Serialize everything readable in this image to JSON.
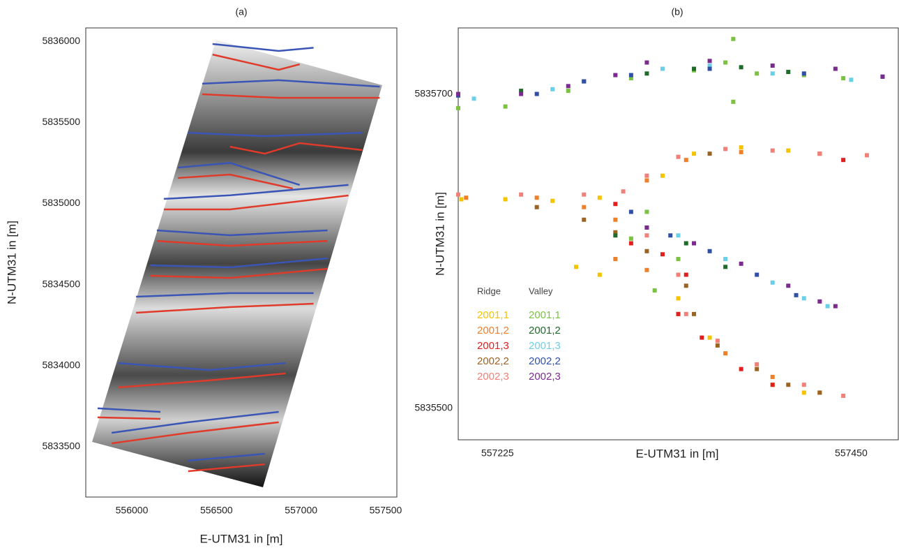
{
  "chart_data": [
    {
      "type": "line",
      "title": "(a)",
      "x_label": "E-UTM31 in [m]",
      "y_label": "N-UTM31 in [m]",
      "xlim": [
        555728,
        557566
      ],
      "ylim": [
        5833190,
        5836082
      ],
      "xticks": [
        556000,
        556500,
        557000,
        557500
      ],
      "yticks": [
        5833500,
        5834000,
        5834500,
        5835000,
        5835500,
        5836000
      ],
      "lines": [
        {
          "color": "#3a55b5",
          "x": [
            556477,
            556868,
            557074
          ],
          "y": [
            5835983,
            5835940,
            5835960
          ]
        },
        {
          "color": "#3a55b5",
          "x": [
            556416,
            556868,
            557465
          ],
          "y": [
            5835738,
            5835760,
            5835720
          ]
        },
        {
          "color": "#3a55b5",
          "x": [
            556333,
            556786,
            557362
          ],
          "y": [
            5835436,
            5835415,
            5835436
          ]
        },
        {
          "color": "#3a55b5",
          "x": [
            556272,
            556580,
            556992
          ],
          "y": [
            5835221,
            5835250,
            5835114
          ]
        },
        {
          "color": "#3a55b5",
          "x": [
            556189,
            556580,
            557280
          ],
          "y": [
            5835028,
            5835050,
            5835114
          ]
        },
        {
          "color": "#3a55b5",
          "x": [
            556148,
            556580,
            557156
          ],
          "y": [
            5834834,
            5834804,
            5834834
          ]
        },
        {
          "color": "#3a55b5",
          "x": [
            556107,
            556580,
            557156
          ],
          "y": [
            5834619,
            5834606,
            5834662
          ]
        },
        {
          "color": "#3a55b5",
          "x": [
            556025,
            556580,
            557074
          ],
          "y": [
            5834425,
            5834447,
            5834447
          ]
        },
        {
          "color": "#3a55b5",
          "x": [
            555922,
            556457,
            556909
          ],
          "y": [
            5834016,
            5833973,
            5834016
          ]
        },
        {
          "color": "#3a55b5",
          "x": [
            555798,
            556169
          ],
          "y": [
            5833737,
            5833715
          ]
        },
        {
          "color": "#3a55b5",
          "x": [
            555881,
            556333,
            556868
          ],
          "y": [
            5833586,
            5833651,
            5833715
          ]
        },
        {
          "color": "#3a55b5",
          "x": [
            556333,
            556786
          ],
          "y": [
            5833414,
            5833457
          ]
        },
        {
          "color": "#e03a2a",
          "x": [
            556477,
            556868,
            556992
          ],
          "y": [
            5835918,
            5835824,
            5835858
          ]
        },
        {
          "color": "#e03a2a",
          "x": [
            556416,
            556868,
            557465
          ],
          "y": [
            5835673,
            5835651,
            5835651
          ]
        },
        {
          "color": "#e03a2a",
          "x": [
            556580,
            556786,
            556992,
            557362
          ],
          "y": [
            5835350,
            5835307,
            5835372,
            5835329
          ]
        },
        {
          "color": "#e03a2a",
          "x": [
            556272,
            556580,
            556951
          ],
          "y": [
            5835157,
            5835178,
            5835092
          ]
        },
        {
          "color": "#e03a2a",
          "x": [
            556189,
            556580,
            557280
          ],
          "y": [
            5834963,
            5834963,
            5835049
          ]
        },
        {
          "color": "#e03a2a",
          "x": [
            556148,
            556580,
            557156
          ],
          "y": [
            5834769,
            5834739,
            5834769
          ]
        },
        {
          "color": "#e03a2a",
          "x": [
            556107,
            556580,
            557156
          ],
          "y": [
            5834554,
            5834541,
            5834597
          ]
        },
        {
          "color": "#e03a2a",
          "x": [
            556025,
            556580,
            557074
          ],
          "y": [
            5834326,
            5834361,
            5834382
          ]
        },
        {
          "color": "#e03a2a",
          "x": [
            555922,
            556457,
            556909
          ],
          "y": [
            5833866,
            5833909,
            5833952
          ]
        },
        {
          "color": "#e03a2a",
          "x": [
            555798,
            556169
          ],
          "y": [
            5833681,
            5833672
          ]
        },
        {
          "color": "#e03a2a",
          "x": [
            555881,
            556333,
            556868
          ],
          "y": [
            5833521,
            5833586,
            5833651
          ]
        },
        {
          "color": "#e03a2a",
          "x": [
            556333,
            556786
          ],
          "y": [
            5833349,
            5833392
          ]
        }
      ]
    },
    {
      "type": "scatter",
      "title": "(b)",
      "x_label": "E-UTM31 in [m]",
      "y_label": "N-UTM31 in [m]",
      "xlim": [
        557200,
        557480
      ],
      "ylim": [
        5835480,
        5835742
      ],
      "xticks": [
        557225,
        557450
      ],
      "yticks": [
        5835500,
        5835700
      ],
      "groups": [
        {
          "title": "Ridge",
          "series": [
            {
              "name": "2001,1",
              "color": "#f5c400",
              "x": [
                557202,
                557230,
                557260,
                557290,
                557330,
                557350,
                557380,
                557410,
                557275,
                557290,
                557340,
                557360,
                557400,
                557420
              ],
              "y": [
                5835633,
                5835633,
                5835632,
                5835634,
                5835648,
                5835662,
                5835666,
                5835664,
                5835590,
                5835585,
                5835570,
                5835545,
                5835515,
                5835510
              ]
            },
            {
              "name": "2001,2",
              "color": "#f07f2a",
              "x": [
                557205,
                557250,
                557280,
                557300,
                557320,
                557345,
                557380,
                557300,
                557320,
                557340,
                557370,
                557400,
                557430
              ],
              "y": [
                5835634,
                5835634,
                5835628,
                5835620,
                5835645,
                5835658,
                5835663,
                5835595,
                5835588,
                5835560,
                5835535,
                5835520,
                5835510
              ]
            },
            {
              "name": "2001,3",
              "color": "#e01f1f",
              "x": [
                557300,
                557310,
                557330,
                557345,
                557340,
                557355,
                557380,
                557400,
                557430,
                557445
              ],
              "y": [
                5835630,
                5835605,
                5835598,
                5835585,
                5835560,
                5835545,
                5835525,
                5835515,
                5835662,
                5835658
              ]
            },
            {
              "name": "2002,2",
              "color": "#9a6322",
              "x": [
                557250,
                557280,
                557300,
                557320,
                557345,
                557350,
                557365,
                557390,
                557410,
                557430,
                557360
              ],
              "y": [
                5835628,
                5835620,
                5835612,
                5835600,
                5835578,
                5835560,
                5835540,
                5835525,
                5835515,
                5835510,
                5835662
              ]
            },
            {
              "name": "2002,3",
              "color": "#f08078",
              "x": [
                557200,
                557240,
                557280,
                557305,
                557320,
                557340,
                557370,
                557400,
                557430,
                557460,
                557320,
                557340,
                557345,
                557365,
                557390,
                557420,
                557445
              ],
              "y": [
                5835636,
                5835636,
                5835636,
                5835638,
                5835648,
                5835660,
                5835665,
                5835664,
                5835662,
                5835661,
                5835610,
                5835585,
                5835560,
                5835543,
                5835528,
                5835515,
                5835508
              ]
            }
          ]
        },
        {
          "title": "Valley",
          "series": [
            {
              "name": "2001,1",
              "color": "#7cc242",
              "x": [
                557200,
                557230,
                557270,
                557310,
                557350,
                557370,
                557375,
                557375,
                557390,
                557420,
                557445,
                557320,
                557310,
                557325,
                557340
              ],
              "y": [
                5835691,
                5835692,
                5835702,
                5835710,
                5835715,
                5835720,
                5835735,
                5835695,
                5835713,
                5835712,
                5835710,
                5835625,
                5835608,
                5835575,
                5835595
              ]
            },
            {
              "name": "2001,2",
              "color": "#1f6b2a",
              "x": [
                557240,
                557280,
                557320,
                557350,
                557380,
                557410,
                557300,
                557320,
                557345,
                557370
              ],
              "y": [
                5835702,
                5835708,
                5835713,
                5835716,
                5835717,
                5835714,
                5835610,
                5835615,
                5835605,
                5835590
              ]
            },
            {
              "name": "2001,3",
              "color": "#6ccfe8",
              "x": [
                557210,
                557260,
                557330,
                557360,
                557400,
                557450,
                557340,
                557370,
                557400,
                557420,
                557435
              ],
              "y": [
                5835697,
                5835703,
                5835716,
                5835718,
                5835713,
                5835709,
                5835610,
                5835595,
                5835580,
                5835570,
                5835565
              ]
            },
            {
              "name": "2002,2",
              "color": "#3050a8",
              "x": [
                557200,
                557250,
                557280,
                557310,
                557360,
                557420,
                557470,
                557310,
                557335,
                557360,
                557390,
                557415
              ],
              "y": [
                5835699,
                5835700,
                5835708,
                5835712,
                5835716,
                5835713,
                5835711,
                5835625,
                5835610,
                5835600,
                5835585,
                5835572
              ]
            },
            {
              "name": "2002,3",
              "color": "#7b2a8e",
              "x": [
                557200,
                557240,
                557270,
                557300,
                557320,
                557360,
                557400,
                557440,
                557470,
                557320,
                557350,
                557380,
                557410,
                557430,
                557440
              ],
              "y": [
                5835700,
                5835700,
                5835705,
                5835712,
                5835720,
                5835721,
                5835718,
                5835716,
                5835711,
                5835615,
                5835605,
                5835592,
                5835578,
                5835568,
                5835565
              ]
            }
          ]
        }
      ]
    }
  ]
}
